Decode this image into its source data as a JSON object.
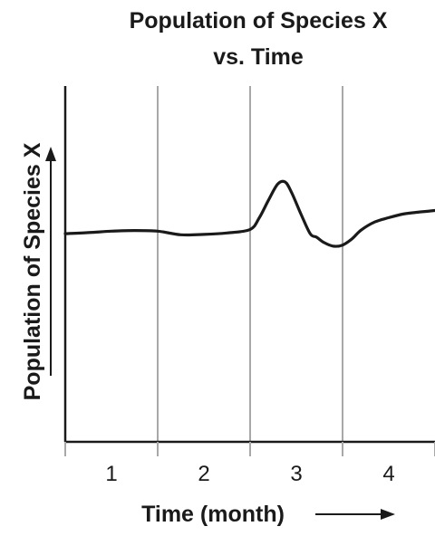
{
  "chart_data": {
    "type": "line",
    "title_line1": "Population of Species X",
    "title_line2": "vs. Time",
    "xlabel": "Time (month)",
    "ylabel": "Population of Species X",
    "xlim": [
      0,
      4
    ],
    "grid": "vertical lines at month boundaries",
    "categories": [
      "1",
      "2",
      "3",
      "4"
    ],
    "series": [
      {
        "x": [
          0,
          0.25,
          0.5,
          0.75,
          1.0,
          1.25,
          1.5,
          1.75,
          2.0,
          2.1,
          2.2,
          2.3,
          2.38,
          2.45,
          2.55,
          2.65,
          2.72,
          2.8,
          2.9,
          3.0,
          3.1,
          3.2,
          3.35,
          3.5,
          3.65,
          3.8,
          4.0
        ],
        "y": [
          0.585,
          0.588,
          0.592,
          0.594,
          0.592,
          0.582,
          0.583,
          0.587,
          0.597,
          0.63,
          0.68,
          0.725,
          0.73,
          0.7,
          0.64,
          0.585,
          0.575,
          0.56,
          0.55,
          0.553,
          0.57,
          0.595,
          0.618,
          0.63,
          0.64,
          0.645,
          0.65
        ],
        "color": "#1a1a1a"
      }
    ]
  }
}
